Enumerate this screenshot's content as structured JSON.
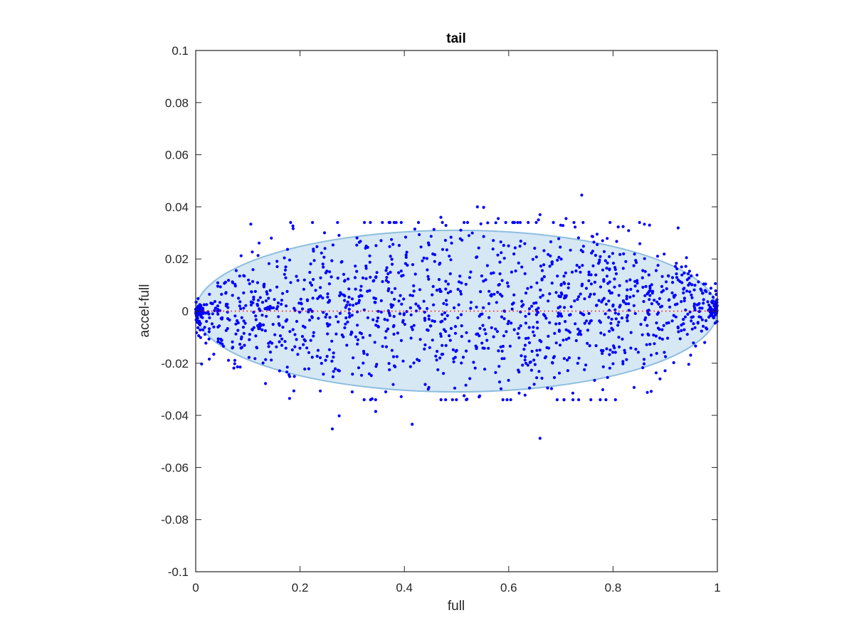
{
  "chart_data": {
    "type": "scatter",
    "title": "tail",
    "xlabel": "full",
    "ylabel": "accel-full",
    "xlim": [
      0,
      1
    ],
    "ylim": [
      -0.1,
      0.1
    ],
    "xticks": [
      0,
      0.2,
      0.4,
      0.6,
      0.8,
      1
    ],
    "xtick_labels": [
      "0",
      "0.2",
      "0.4",
      "0.6",
      "0.8",
      "1"
    ],
    "yticks": [
      -0.1,
      -0.08,
      -0.06,
      -0.04,
      -0.02,
      0,
      0.02,
      0.04,
      0.06,
      0.08,
      0.1
    ],
    "ytick_labels": [
      "-0.1",
      "-0.08",
      "-0.06",
      "-0.04",
      "-0.02",
      "0",
      "0.02",
      "0.04",
      "0.06",
      "0.08",
      "0.1"
    ],
    "grid": false,
    "box": true,
    "ellipse": {
      "center": [
        0.5,
        0
      ],
      "x_radius": 0.5,
      "y_radius": 0.031,
      "fill": "#d6e8f4",
      "stroke": "#8ebedf"
    },
    "reference_line": {
      "y": 0,
      "style": "dotted",
      "color": "#ff0000"
    },
    "point_color": "#0000ff",
    "approx_point_count": 1400,
    "outliers": [
      [
        0.74,
        0.0445
      ],
      [
        0.54,
        0.04
      ],
      [
        0.552,
        0.0398
      ],
      [
        0.47,
        0.036
      ],
      [
        0.58,
        0.0355
      ],
      [
        0.66,
        0.037
      ],
      [
        0.657,
        0.035
      ],
      [
        0.71,
        0.0355
      ],
      [
        0.87,
        0.033
      ],
      [
        0.81,
        0.0323
      ],
      [
        0.42,
        0.0315
      ],
      [
        0.145,
        0.028
      ],
      [
        0.262,
        -0.0452
      ],
      [
        0.415,
        -0.0434
      ],
      [
        0.66,
        -0.0488
      ],
      [
        0.275,
        -0.0402
      ],
      [
        0.345,
        -0.0385
      ],
      [
        0.18,
        -0.0335
      ],
      [
        0.52,
        -0.0338
      ],
      [
        0.62,
        -0.0315
      ],
      [
        0.78,
        0.027
      ],
      [
        0.89,
        -0.026
      ],
      [
        0.64,
        -0.0295
      ],
      [
        0.3,
        -0.031
      ]
    ]
  }
}
